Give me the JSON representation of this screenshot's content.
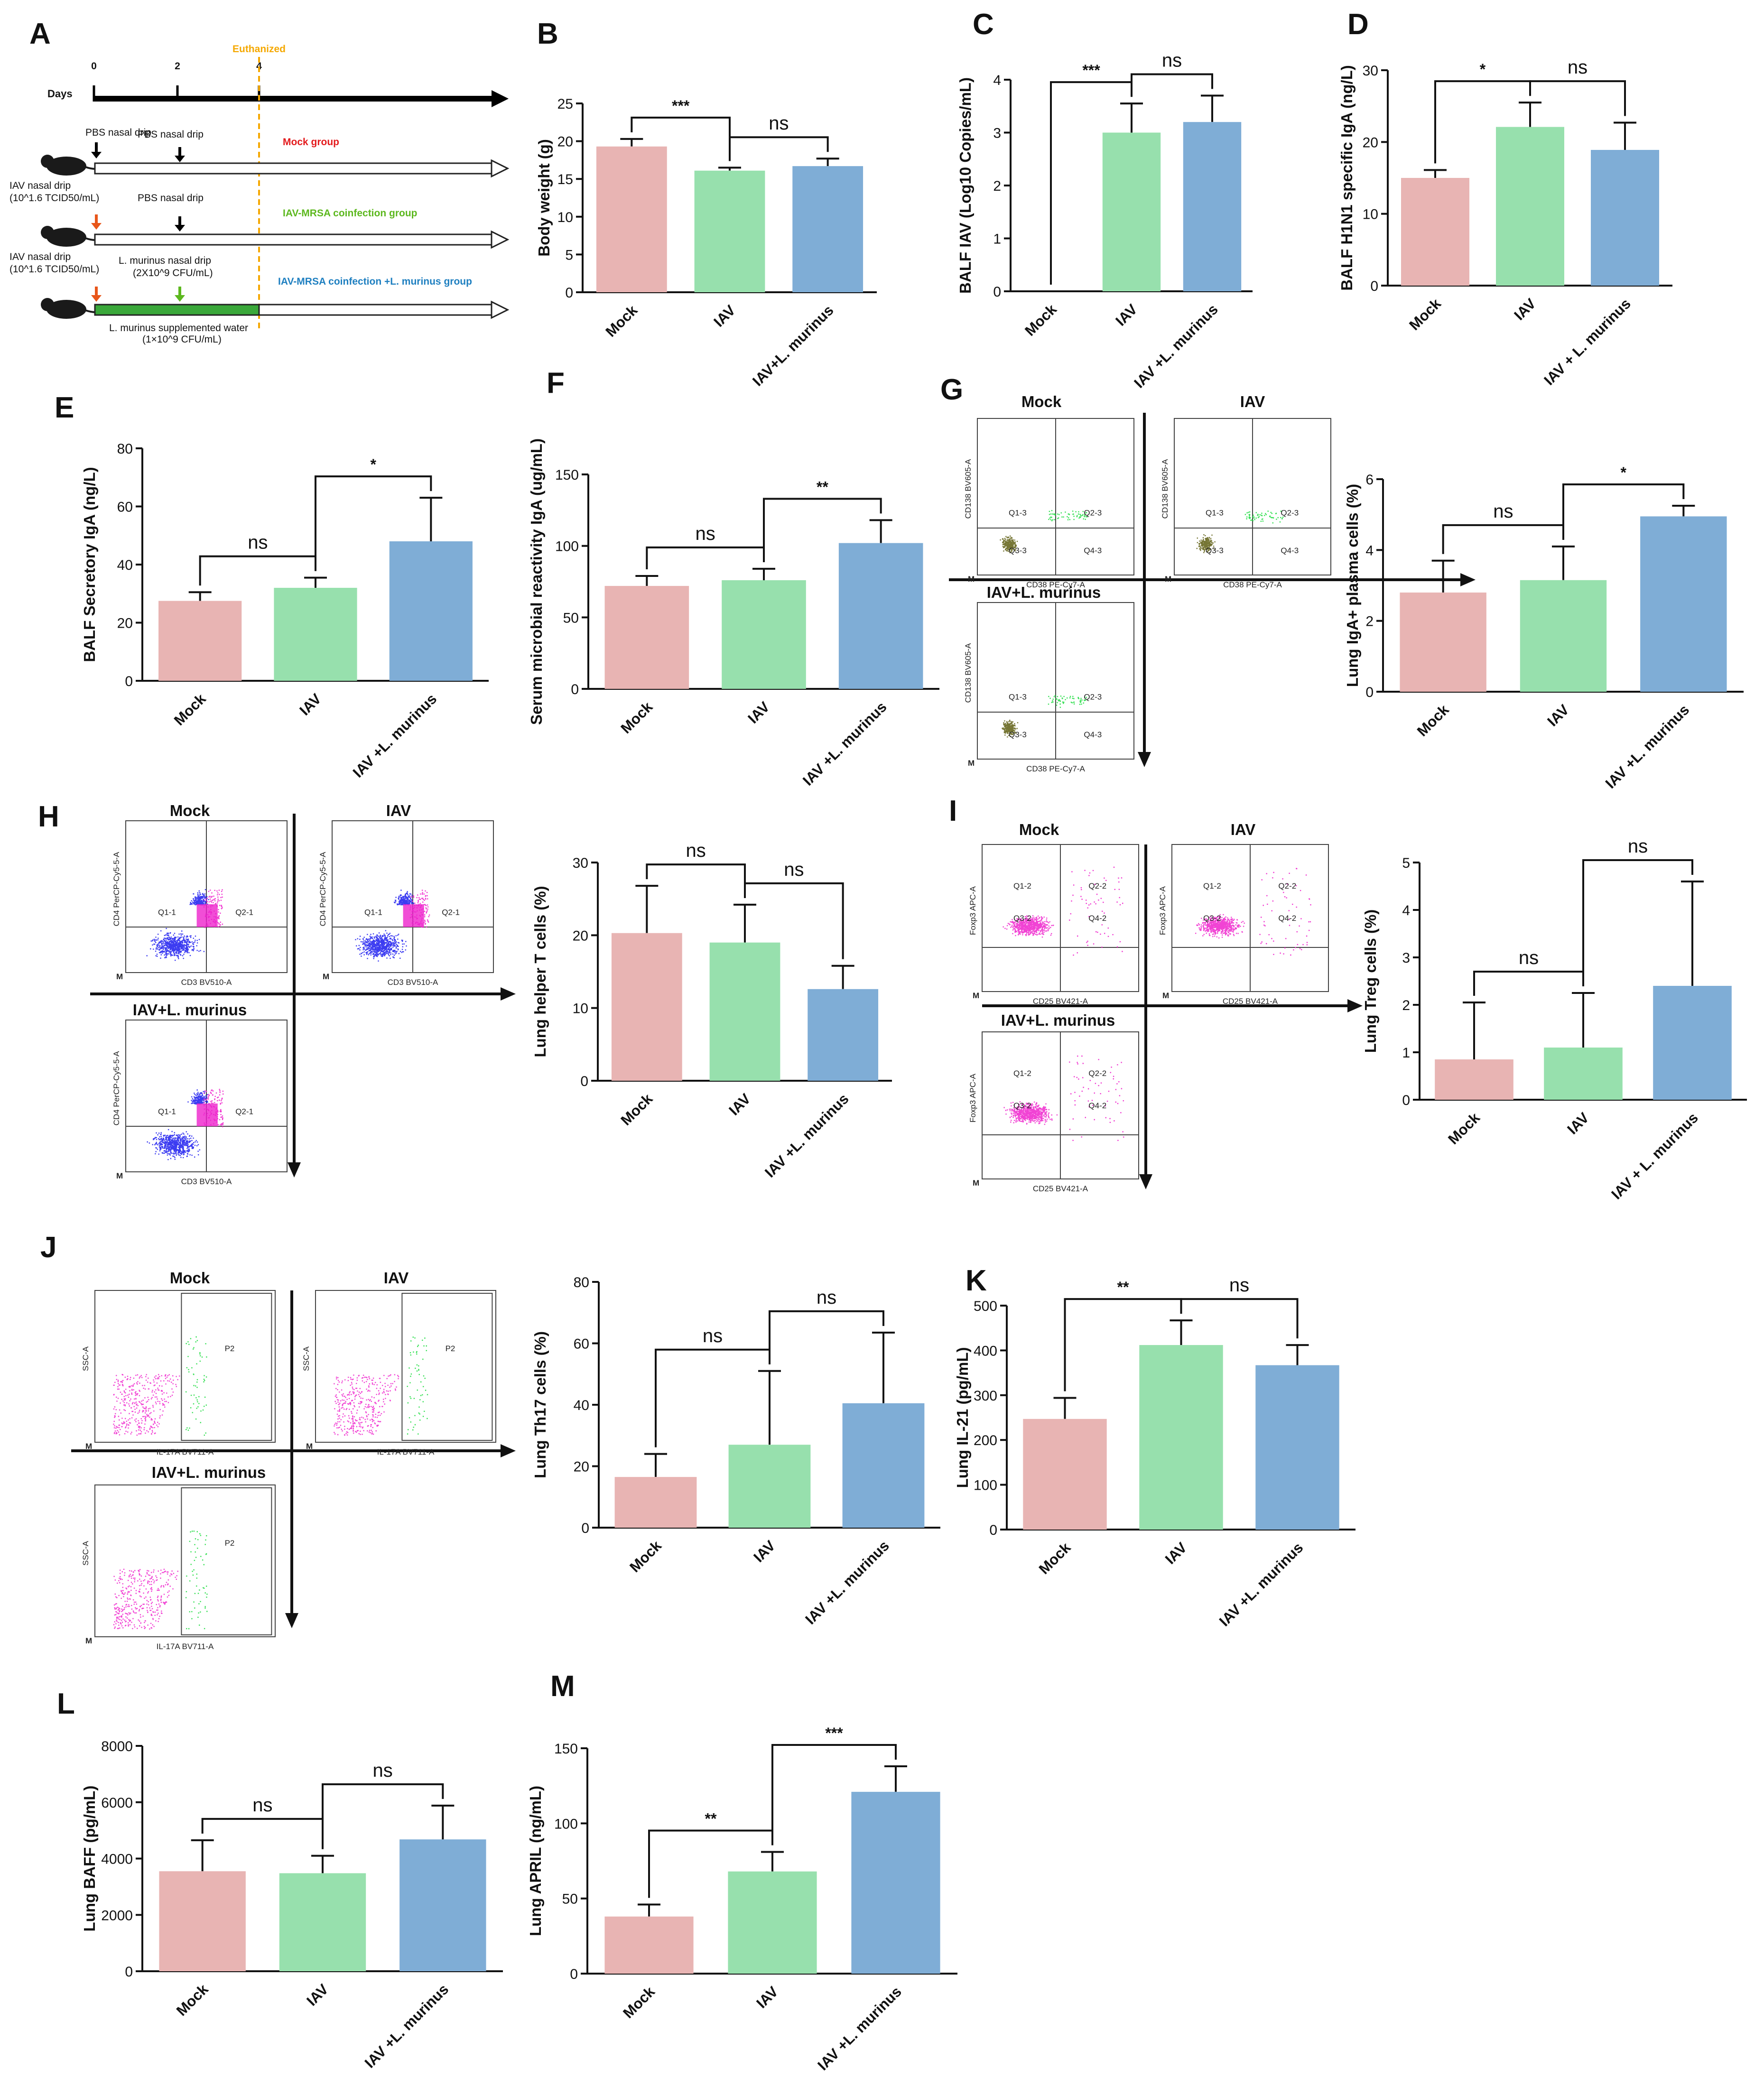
{
  "colors": {
    "mock": "#e8b4b3",
    "iav": "#97e0ad",
    "lm": "#7fadd6",
    "pbs": "#222222",
    "red": "#e31a1c",
    "green": "#5cb81e",
    "blue": "#1e7fc0",
    "orange": "#f5a800",
    "olive": "#5e5e12",
    "magenta": "#ee22cc",
    "flowblue": "#1a1aee",
    "flowgreen": "#22dd44"
  },
  "panelA": {
    "label": "A",
    "days_label": "Days",
    "day_ticks": [
      "0",
      "2",
      "4"
    ],
    "euthanized": "Euthanized",
    "rows": [
      {
        "drip": "PBS nasal drip",
        "drip2": "PBS nasal drip",
        "group": "Mock group"
      },
      {
        "iav_drip": "IAV nasal drip",
        "iav_dose": "(10^1.6 TCID50/mL)",
        "drip2": "PBS nasal drip",
        "group": "IAV-MRSA coinfection group"
      },
      {
        "iav_drip": "IAV nasal drip",
        "iav_dose": "(10^1.6 TCID50/mL)",
        "lm_drip": "L. murinus nasal drip",
        "lm_dose": "(2X10^9 CFU/mL)",
        "group": "IAV-MRSA coinfection +L. murinus group",
        "water": "L. murinus supplemented water",
        "water_dose": "(1×10^9 CFU/mL)"
      }
    ]
  },
  "flow": [
    {
      "label": "G",
      "titles": [
        "Mock",
        "IAV",
        "IAV+L. murinus"
      ],
      "xlabel": "CD38 PE-Cy7-A",
      "ylabel": "CD138 BV605-A",
      "quads": [
        "Q1-3",
        "Q2-3",
        "Q3-3",
        "Q4-3"
      ]
    },
    {
      "label": "H",
      "titles": [
        "Mock",
        "IAV",
        "IAV+L. murinus"
      ],
      "xlabel": "CD3 BV510-A",
      "ylabel": "CD4 PerCP-Cy5-5-A",
      "quads": [
        "Q1-1",
        "Q2-1"
      ]
    },
    {
      "label": "I",
      "titles": [
        "Mock",
        "IAV",
        "IAV+L. murinus"
      ],
      "xlabel": "CD25 BV421-A",
      "ylabel": "Foxp3 APC-A",
      "quads": [
        "Q1-2",
        "Q2-2",
        "Q3-2",
        "Q4-2"
      ]
    },
    {
      "label": "J",
      "titles": [
        "Mock",
        "IAV",
        "IAV+L. murinus"
      ],
      "xlabel": "IL-17A BV711-A",
      "ylabel": "SSC-A",
      "quads": [
        "P2"
      ]
    }
  ],
  "chart_data": [
    {
      "id": "B",
      "type": "bar",
      "categories": [
        "Mock",
        "IAV",
        "IAV+L. murinus"
      ],
      "values": [
        19.3,
        16.1,
        16.7
      ],
      "errors": [
        1.0,
        0.4,
        1.0
      ],
      "ylabel": "Body weight (g)",
      "ylim": [
        0,
        25
      ],
      "yticks": [
        "0",
        "5",
        "10",
        "15",
        "20",
        "25"
      ],
      "comparisons": [
        {
          "pair": [
            0,
            1
          ],
          "text": "***"
        },
        {
          "pair": [
            1,
            2
          ],
          "text": "ns"
        }
      ]
    },
    {
      "id": "C",
      "type": "bar",
      "categories": [
        "Mock",
        "IAV",
        "IAV +L. murinus"
      ],
      "values": [
        0,
        3.0,
        3.2
      ],
      "errors": [
        0,
        0.55,
        0.5
      ],
      "ylabel": "BALF IAV (Log10 Copies/mL)",
      "ylim": [
        0,
        4
      ],
      "yticks": [
        "0",
        "1",
        "2",
        "3",
        "4"
      ],
      "comparisons": [
        {
          "pair": [
            0,
            1
          ],
          "text": "***"
        },
        {
          "pair": [
            1,
            2
          ],
          "text": "ns"
        }
      ]
    },
    {
      "id": "D",
      "type": "bar",
      "categories": [
        "Mock",
        "IAV",
        "IAV + L. murinus"
      ],
      "values": [
        15.0,
        22.1,
        18.9
      ],
      "errors": [
        1.1,
        3.4,
        3.8
      ],
      "ylabel": "BALF H1N1 specific IgA (ng/L)",
      "ylim": [
        0,
        30
      ],
      "yticks": [
        "0",
        "10",
        "20",
        "30"
      ],
      "comparisons": [
        {
          "pair": [
            0,
            1
          ],
          "text": "*"
        },
        {
          "pair": [
            1,
            2
          ],
          "text": "ns"
        }
      ]
    },
    {
      "id": "E",
      "type": "bar",
      "categories": [
        "Mock",
        "IAV",
        "IAV +L. murinus"
      ],
      "values": [
        27.5,
        32.0,
        48.0
      ],
      "errors": [
        3.0,
        3.5,
        15.0
      ],
      "ylabel": "BALF Secretory IgA (ng/L)",
      "ylim": [
        0,
        80
      ],
      "yticks": [
        "0",
        "20",
        "40",
        "60",
        "80"
      ],
      "comparisons": [
        {
          "pair": [
            0,
            1
          ],
          "text": "ns"
        },
        {
          "pair": [
            1,
            2
          ],
          "text": "*"
        }
      ]
    },
    {
      "id": "F",
      "type": "bar",
      "categories": [
        "Mock",
        "IAV",
        "IAV +L. murinus"
      ],
      "values": [
        72,
        76,
        102
      ],
      "errors": [
        7,
        8,
        16
      ],
      "ylabel": "Serum microbial reactivity IgA (ug/mL)",
      "ylim": [
        0,
        150
      ],
      "yticks": [
        "0",
        "50",
        "100",
        "150"
      ],
      "comparisons": [
        {
          "pair": [
            0,
            1
          ],
          "text": "ns"
        },
        {
          "pair": [
            1,
            2
          ],
          "text": "**"
        }
      ]
    },
    {
      "id": "G2",
      "type": "bar",
      "categories": [
        "Mock",
        "IAV",
        "IAV +L. murinus"
      ],
      "values": [
        2.8,
        3.15,
        4.95
      ],
      "errors": [
        0.9,
        0.95,
        0.3
      ],
      "ylabel": "Lung IgA+ plasma cells (%)",
      "ylim": [
        0,
        6
      ],
      "yticks": [
        "0",
        "2",
        "4",
        "6"
      ],
      "comparisons": [
        {
          "pair": [
            0,
            1
          ],
          "text": "ns"
        },
        {
          "pair": [
            1,
            2
          ],
          "text": "*"
        }
      ]
    },
    {
      "id": "H2",
      "type": "bar",
      "categories": [
        "Mock",
        "IAV",
        "IAV +L. murinus"
      ],
      "values": [
        20.3,
        19.0,
        12.6
      ],
      "errors": [
        6.5,
        5.2,
        3.2
      ],
      "ylabel": "Lung helper T cells (%)",
      "ylim": [
        0,
        30
      ],
      "yticks": [
        "0",
        "10",
        "20",
        "30"
      ],
      "comparisons": [
        {
          "pair": [
            0,
            1
          ],
          "text": "ns"
        },
        {
          "pair": [
            1,
            2
          ],
          "text": "ns"
        }
      ]
    },
    {
      "id": "I2",
      "type": "bar",
      "categories": [
        "Mock",
        "IAV",
        "IAV + L. murinus"
      ],
      "values": [
        0.85,
        1.1,
        2.4
      ],
      "errors": [
        1.2,
        1.15,
        2.2
      ],
      "ylabel": "Lung Treg cells (%)",
      "ylim": [
        0,
        5
      ],
      "yticks": [
        "0",
        "1",
        "2",
        "3",
        "4",
        "5"
      ],
      "comparisons": [
        {
          "pair": [
            0,
            1
          ],
          "text": "ns"
        },
        {
          "pair": [
            1,
            2
          ],
          "text": "ns"
        }
      ]
    },
    {
      "id": "J2",
      "type": "bar",
      "categories": [
        "Mock",
        "IAV",
        "IAV +L. murinus"
      ],
      "values": [
        16.5,
        27.0,
        40.5
      ],
      "errors": [
        7.5,
        24.0,
        23.0
      ],
      "ylabel": "Lung Th17 cells (%)",
      "ylim": [
        0,
        80
      ],
      "yticks": [
        "0",
        "20",
        "40",
        "60",
        "80"
      ],
      "comparisons": [
        {
          "pair": [
            0,
            1
          ],
          "text": "ns"
        },
        {
          "pair": [
            1,
            2
          ],
          "text": "ns"
        }
      ]
    },
    {
      "id": "K",
      "type": "bar",
      "categories": [
        "Mock",
        "IAV",
        "IAV +L. murinus"
      ],
      "values": [
        247,
        412,
        367
      ],
      "errors": [
        47,
        55,
        45
      ],
      "ylabel": "Lung IL-21 (pg/mL)",
      "ylim": [
        0,
        500
      ],
      "yticks": [
        "0",
        "100",
        "200",
        "300",
        "400",
        "500"
      ],
      "comparisons": [
        {
          "pair": [
            0,
            1
          ],
          "text": "**"
        },
        {
          "pair": [
            1,
            2
          ],
          "text": "ns"
        }
      ]
    },
    {
      "id": "L",
      "type": "bar",
      "categories": [
        "Mock",
        "IAV",
        "IAV +L. murinus"
      ],
      "values": [
        3550,
        3480,
        4680
      ],
      "errors": [
        1100,
        620,
        1200
      ],
      "ylabel": "Lung BAFF (pg/mL)",
      "ylim": [
        0,
        8000
      ],
      "yticks": [
        "0",
        "2000",
        "4000",
        "6000",
        "8000"
      ],
      "comparisons": [
        {
          "pair": [
            0,
            1
          ],
          "text": "ns"
        },
        {
          "pair": [
            1,
            2
          ],
          "text": "ns"
        }
      ]
    },
    {
      "id": "M",
      "type": "bar",
      "categories": [
        "Mock",
        "IAV",
        "IAV +L. murinus"
      ],
      "values": [
        38,
        68,
        121
      ],
      "errors": [
        8,
        13,
        17
      ],
      "ylabel": "Lung APRIL (ng/mL)",
      "ylim": [
        0,
        150
      ],
      "yticks": [
        "0",
        "50",
        "100",
        "150"
      ],
      "comparisons": [
        {
          "pair": [
            0,
            1
          ],
          "text": "**"
        },
        {
          "pair": [
            1,
            2
          ],
          "text": "***"
        }
      ]
    }
  ]
}
